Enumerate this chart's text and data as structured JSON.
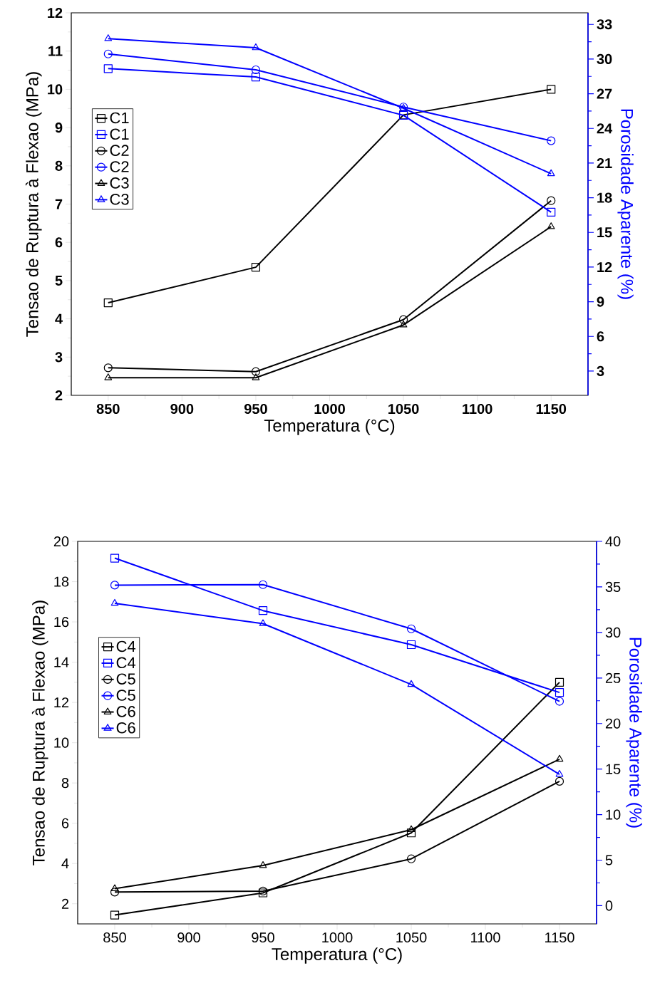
{
  "chart_data": [
    {
      "type": "line",
      "xlabel": "Temperatura (°C)",
      "ylabel": "Tensao de Ruptura à Flexao (MPa)",
      "y2label": "Porosidade Aparente (%)",
      "x": [
        850,
        950,
        1050,
        1150
      ],
      "xlim": [
        825,
        1175
      ],
      "xticks": [
        850,
        900,
        950,
        1000,
        1050,
        1100,
        1150
      ],
      "ylim": [
        2,
        12
      ],
      "yticks": [
        2,
        3,
        4,
        5,
        6,
        7,
        8,
        9,
        10,
        11,
        12
      ],
      "y2lim": [
        0.9,
        34
      ],
      "y2ticks": [
        3,
        6,
        9,
        12,
        15,
        18,
        21,
        24,
        27,
        30,
        33
      ],
      "legend": "left",
      "series": [
        {
          "name": "C1",
          "color": "#000000",
          "marker": "square",
          "values": [
            4.42,
            5.35,
            9.33,
            10.0
          ]
        },
        {
          "name": "C1",
          "color": "#0000ff",
          "marker": "square",
          "axis": "y2",
          "values": [
            29.17,
            28.45,
            25.13,
            16.75
          ]
        },
        {
          "name": "C2",
          "color": "#000000",
          "marker": "circle",
          "values": [
            2.72,
            2.62,
            3.98,
            7.09
          ]
        },
        {
          "name": "C2",
          "color": "#0000ff",
          "marker": "circle",
          "axis": "y2",
          "values": [
            30.44,
            29.07,
            25.85,
            22.93
          ]
        },
        {
          "name": "C3",
          "color": "#000000",
          "marker": "triangle",
          "values": [
            2.46,
            2.46,
            3.84,
            6.41
          ]
        },
        {
          "name": "C3",
          "color": "#0000ff",
          "marker": "triangle",
          "axis": "y2",
          "values": [
            31.77,
            30.98,
            25.74,
            20.08
          ]
        }
      ]
    },
    {
      "type": "line",
      "xlabel": "Temperatura (°C)",
      "ylabel": "Tensao de Ruptura à Flexao (MPa)",
      "y2label": "Porosidade Aparente (%)",
      "x": [
        850,
        950,
        1050,
        1150
      ],
      "xlim": [
        825,
        1175
      ],
      "xticks": [
        850,
        900,
        950,
        1000,
        1050,
        1100,
        1150
      ],
      "ylim": [
        1,
        20
      ],
      "yticks": [
        2,
        4,
        6,
        8,
        10,
        12,
        14,
        16,
        18,
        20
      ],
      "y2lim": [
        -2,
        40
      ],
      "y2ticks": [
        0,
        5,
        10,
        15,
        20,
        25,
        30,
        35,
        40
      ],
      "legend": "left",
      "series": [
        {
          "name": "C4",
          "color": "#000000",
          "marker": "square",
          "values": [
            1.44,
            2.54,
            5.52,
            13.0
          ]
        },
        {
          "name": "C4",
          "color": "#0000ff",
          "marker": "square",
          "axis": "y2",
          "values": [
            38.16,
            32.4,
            28.66,
            23.41
          ]
        },
        {
          "name": "C5",
          "color": "#000000",
          "marker": "circle",
          "values": [
            2.58,
            2.63,
            4.23,
            8.08
          ]
        },
        {
          "name": "C5",
          "color": "#0000ff",
          "marker": "circle",
          "axis": "y2",
          "values": [
            35.2,
            35.25,
            30.4,
            22.44
          ]
        },
        {
          "name": "C6",
          "color": "#000000",
          "marker": "triangle",
          "values": [
            2.75,
            3.9,
            5.68,
            9.18
          ]
        },
        {
          "name": "C6",
          "color": "#0000ff",
          "marker": "triangle",
          "axis": "y2",
          "values": [
            33.2,
            30.97,
            24.29,
            14.42
          ]
        }
      ]
    }
  ]
}
